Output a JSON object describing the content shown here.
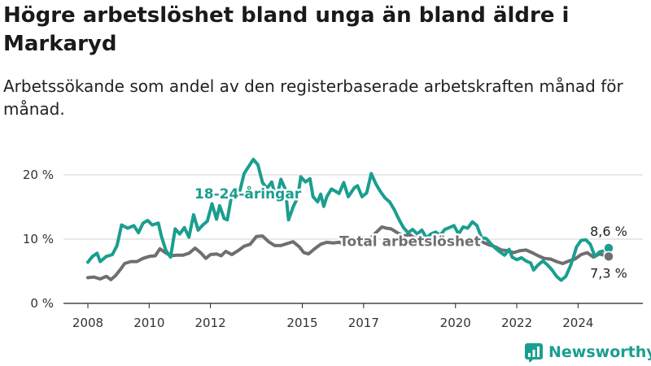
{
  "title": "Högre arbetslöshet bland unga än bland äldre i Markaryd",
  "subtitle": "Arbetssökande som andel av den registerbaserade arbetskraften månad för månad.",
  "brand": "Newsworthy",
  "colors": {
    "youth": "#1a9e8f",
    "total": "#6e6e73",
    "grid": "#d0d0d0",
    "axis": "#222222"
  },
  "chart_data": {
    "type": "line",
    "x_unit": "year",
    "ylabel": "",
    "ylim": [
      0,
      20
    ],
    "y_ticks": [
      0,
      10,
      20
    ],
    "y_tick_labels": [
      "0 %",
      "10 %",
      "20 %"
    ],
    "x_ticks": [
      2008,
      2010,
      2012,
      2015,
      2017,
      2020,
      2022,
      2024
    ],
    "x_tick_labels": [
      "2008",
      "2010",
      "2012",
      "2015",
      "2017",
      "2020",
      "2022",
      "2024"
    ],
    "series": [
      {
        "name": "18-24-åringar",
        "color": "#1a9e8f",
        "end_label": "8,6 %",
        "points": [
          [
            2008.0,
            6.4
          ],
          [
            2008.15,
            7.3
          ],
          [
            2008.3,
            7.8
          ],
          [
            2008.4,
            6.5
          ],
          [
            2008.6,
            7.3
          ],
          [
            2008.8,
            7.6
          ],
          [
            2008.95,
            9.0
          ],
          [
            2009.1,
            12.2
          ],
          [
            2009.3,
            11.7
          ],
          [
            2009.5,
            12.1
          ],
          [
            2009.65,
            11.0
          ],
          [
            2009.8,
            12.5
          ],
          [
            2009.95,
            12.9
          ],
          [
            2010.1,
            12.2
          ],
          [
            2010.3,
            12.5
          ],
          [
            2010.4,
            10.4
          ],
          [
            2010.55,
            8.2
          ],
          [
            2010.7,
            7.2
          ],
          [
            2010.85,
            11.6
          ],
          [
            2011.0,
            10.8
          ],
          [
            2011.15,
            11.8
          ],
          [
            2011.3,
            10.3
          ],
          [
            2011.45,
            13.8
          ],
          [
            2011.6,
            11.4
          ],
          [
            2011.75,
            12.2
          ],
          [
            2011.9,
            12.8
          ],
          [
            2012.05,
            15.5
          ],
          [
            2012.2,
            13.1
          ],
          [
            2012.3,
            15.2
          ],
          [
            2012.45,
            13.2
          ],
          [
            2012.55,
            13.0
          ],
          [
            2012.7,
            17.0
          ],
          [
            2012.8,
            17.8
          ],
          [
            2012.95,
            17.3
          ],
          [
            2013.1,
            20.2
          ],
          [
            2013.25,
            21.3
          ],
          [
            2013.4,
            22.4
          ],
          [
            2013.55,
            21.6
          ],
          [
            2013.7,
            18.8
          ],
          [
            2013.85,
            17.9
          ],
          [
            2014.0,
            18.9
          ],
          [
            2014.15,
            16.2
          ],
          [
            2014.3,
            19.3
          ],
          [
            2014.45,
            17.7
          ],
          [
            2014.55,
            13.0
          ],
          [
            2014.7,
            15.0
          ],
          [
            2014.85,
            16.5
          ],
          [
            2014.95,
            19.7
          ],
          [
            2015.1,
            18.9
          ],
          [
            2015.25,
            19.4
          ],
          [
            2015.35,
            16.6
          ],
          [
            2015.5,
            15.8
          ],
          [
            2015.6,
            17.0
          ],
          [
            2015.7,
            15.1
          ],
          [
            2015.8,
            16.6
          ],
          [
            2015.95,
            17.8
          ],
          [
            2016.1,
            17.4
          ],
          [
            2016.2,
            17.1
          ],
          [
            2016.35,
            18.8
          ],
          [
            2016.5,
            16.6
          ],
          [
            2016.7,
            18.0
          ],
          [
            2016.8,
            18.3
          ],
          [
            2016.95,
            16.6
          ],
          [
            2017.1,
            17.2
          ],
          [
            2017.25,
            20.2
          ],
          [
            2017.4,
            18.6
          ],
          [
            2017.55,
            17.4
          ],
          [
            2017.7,
            16.4
          ],
          [
            2017.85,
            15.8
          ],
          [
            2018.0,
            14.6
          ],
          [
            2018.15,
            13.1
          ],
          [
            2018.3,
            11.8
          ],
          [
            2018.45,
            11.0
          ],
          [
            2018.6,
            11.5
          ],
          [
            2018.75,
            10.8
          ],
          [
            2018.9,
            11.4
          ],
          [
            2019.05,
            10.2
          ],
          [
            2019.2,
            10.8
          ],
          [
            2019.35,
            11.1
          ],
          [
            2019.5,
            10.6
          ],
          [
            2019.65,
            11.5
          ],
          [
            2019.8,
            11.8
          ],
          [
            2019.95,
            12.1
          ],
          [
            2020.1,
            10.8
          ],
          [
            2020.25,
            11.9
          ],
          [
            2020.4,
            11.7
          ],
          [
            2020.55,
            12.7
          ],
          [
            2020.7,
            12.1
          ],
          [
            2020.85,
            10.2
          ],
          [
            2021.0,
            10.1
          ],
          [
            2021.15,
            9.3
          ],
          [
            2021.3,
            8.6
          ],
          [
            2021.45,
            8.0
          ],
          [
            2021.6,
            7.5
          ],
          [
            2021.75,
            8.4
          ],
          [
            2021.85,
            7.2
          ],
          [
            2022.0,
            6.8
          ],
          [
            2022.15,
            7.1
          ],
          [
            2022.3,
            6.6
          ],
          [
            2022.45,
            6.3
          ],
          [
            2022.55,
            5.2
          ],
          [
            2022.7,
            6.0
          ],
          [
            2022.85,
            6.6
          ],
          [
            2023.0,
            6.0
          ],
          [
            2023.15,
            5.2
          ],
          [
            2023.3,
            4.2
          ],
          [
            2023.45,
            3.6
          ],
          [
            2023.6,
            4.2
          ],
          [
            2023.75,
            5.8
          ],
          [
            2023.85,
            7.2
          ],
          [
            2023.95,
            8.8
          ],
          [
            2024.1,
            9.8
          ],
          [
            2024.25,
            9.9
          ],
          [
            2024.4,
            9.2
          ],
          [
            2024.55,
            7.3
          ],
          [
            2024.7,
            8.0
          ],
          [
            2024.85,
            8.2
          ],
          [
            2025.0,
            8.6
          ]
        ]
      },
      {
        "name": "Total arbetslöshet",
        "color": "#6e6e73",
        "end_label": "7,3 %",
        "points": [
          [
            2008.0,
            4.0
          ],
          [
            2008.2,
            4.1
          ],
          [
            2008.4,
            3.8
          ],
          [
            2008.6,
            4.2
          ],
          [
            2008.75,
            3.7
          ],
          [
            2008.9,
            4.3
          ],
          [
            2009.05,
            5.2
          ],
          [
            2009.2,
            6.2
          ],
          [
            2009.4,
            6.5
          ],
          [
            2009.6,
            6.5
          ],
          [
            2009.8,
            7.0
          ],
          [
            2010.0,
            7.3
          ],
          [
            2010.2,
            7.4
          ],
          [
            2010.35,
            8.5
          ],
          [
            2010.5,
            8.0
          ],
          [
            2010.7,
            7.4
          ],
          [
            2010.9,
            7.5
          ],
          [
            2011.1,
            7.5
          ],
          [
            2011.3,
            7.8
          ],
          [
            2011.5,
            8.6
          ],
          [
            2011.7,
            7.8
          ],
          [
            2011.85,
            7.0
          ],
          [
            2012.0,
            7.6
          ],
          [
            2012.2,
            7.7
          ],
          [
            2012.35,
            7.4
          ],
          [
            2012.5,
            8.1
          ],
          [
            2012.7,
            7.6
          ],
          [
            2012.9,
            8.2
          ],
          [
            2013.1,
            8.9
          ],
          [
            2013.3,
            9.2
          ],
          [
            2013.5,
            10.4
          ],
          [
            2013.7,
            10.5
          ],
          [
            2013.9,
            9.6
          ],
          [
            2014.1,
            9.0
          ],
          [
            2014.3,
            9.0
          ],
          [
            2014.5,
            9.3
          ],
          [
            2014.7,
            9.6
          ],
          [
            2014.9,
            8.8
          ],
          [
            2015.05,
            7.9
          ],
          [
            2015.2,
            7.7
          ],
          [
            2015.4,
            8.5
          ],
          [
            2015.6,
            9.2
          ],
          [
            2015.8,
            9.5
          ],
          [
            2016.0,
            9.4
          ],
          [
            2016.2,
            9.5
          ],
          [
            2016.4,
            9.1
          ],
          [
            2016.6,
            9.8
          ],
          [
            2016.8,
            9.5
          ],
          [
            2017.0,
            10.2
          ],
          [
            2017.2,
            10.0
          ],
          [
            2017.4,
            11.0
          ],
          [
            2017.6,
            11.9
          ],
          [
            2017.75,
            11.7
          ],
          [
            2017.9,
            11.6
          ],
          [
            2018.1,
            11.0
          ],
          [
            2018.3,
            10.5
          ],
          [
            2018.5,
            10.7
          ],
          [
            2018.7,
            10.1
          ],
          [
            2018.9,
            10.5
          ],
          [
            2019.1,
            10.2
          ],
          [
            2019.3,
            10.0
          ],
          [
            2019.5,
            9.6
          ],
          [
            2019.7,
            9.9
          ],
          [
            2019.9,
            9.8
          ],
          [
            2020.1,
            9.4
          ],
          [
            2020.3,
            9.6
          ],
          [
            2020.5,
            9.9
          ],
          [
            2020.7,
            10.1
          ],
          [
            2020.9,
            9.5
          ],
          [
            2021.1,
            9.1
          ],
          [
            2021.3,
            8.8
          ],
          [
            2021.5,
            8.3
          ],
          [
            2021.7,
            8.2
          ],
          [
            2021.9,
            7.9
          ],
          [
            2022.1,
            8.2
          ],
          [
            2022.3,
            8.3
          ],
          [
            2022.5,
            7.9
          ],
          [
            2022.7,
            7.4
          ],
          [
            2022.9,
            7.0
          ],
          [
            2023.1,
            6.9
          ],
          [
            2023.3,
            6.5
          ],
          [
            2023.5,
            6.2
          ],
          [
            2023.7,
            6.6
          ],
          [
            2023.9,
            6.9
          ],
          [
            2024.1,
            7.6
          ],
          [
            2024.3,
            7.9
          ],
          [
            2024.5,
            7.2
          ],
          [
            2024.7,
            7.7
          ],
          [
            2024.85,
            7.5
          ],
          [
            2025.0,
            7.3
          ]
        ]
      }
    ]
  }
}
